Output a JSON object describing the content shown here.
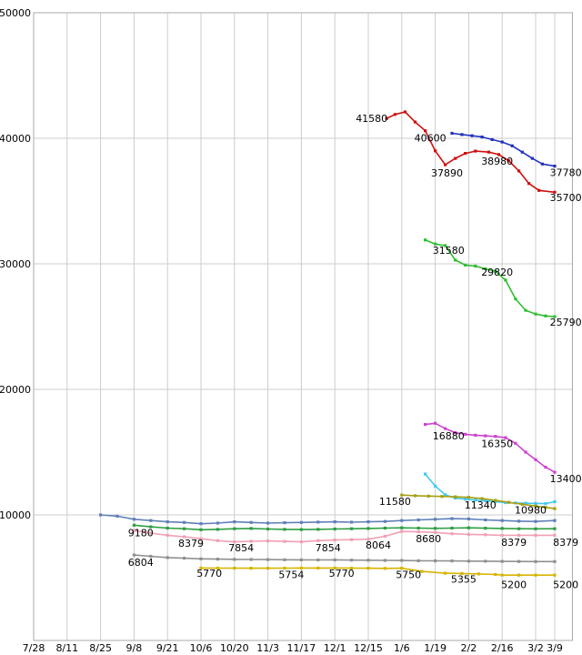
{
  "meta": {
    "background": "#ffffff",
    "grid_color": "#cccccc",
    "axis_color": "#aaaaaa",
    "label_color": "#000000",
    "font_size": 11
  },
  "chart_data": {
    "type": "line",
    "title": "",
    "xlabel": "",
    "ylabel": "",
    "ylim": [
      0,
      50000
    ],
    "xlim": [
      0,
      16.1
    ],
    "grid": true,
    "legend": "none",
    "y_ticks": [
      10000,
      20000,
      30000,
      40000,
      50000
    ],
    "x_tick_labels": [
      "7/28",
      "8/11",
      "8/25",
      "9/8",
      "9/21",
      "10/6",
      "10/20",
      "11/3",
      "11/17",
      "12/1",
      "12/15",
      "1/6",
      "1/19",
      "2/2",
      "2/16",
      "3/2",
      "3/9"
    ],
    "x_tick_positions": [
      0,
      1,
      2,
      3,
      4,
      5,
      6,
      7,
      8,
      9,
      10,
      11,
      12,
      13,
      14,
      15,
      15.57
    ],
    "series": [
      {
        "name": "red",
        "color": "#cc1111",
        "points": [
          [
            10.55,
            41580
          ],
          [
            10.8,
            41900
          ],
          [
            11.1,
            42100
          ],
          [
            11.4,
            41300
          ],
          [
            11.7,
            40600
          ],
          [
            12.0,
            39000
          ],
          [
            12.3,
            37890
          ],
          [
            12.6,
            38400
          ],
          [
            12.9,
            38800
          ],
          [
            13.2,
            38980
          ],
          [
            13.6,
            38900
          ],
          [
            13.9,
            38700
          ],
          [
            14.2,
            38200
          ],
          [
            14.5,
            37400
          ],
          [
            14.8,
            36400
          ],
          [
            15.1,
            35850
          ],
          [
            15.57,
            35700
          ]
        ]
      },
      {
        "name": "navy",
        "color": "#2233bb",
        "points": [
          [
            12.5,
            40400
          ],
          [
            12.8,
            40300
          ],
          [
            13.1,
            40200
          ],
          [
            13.4,
            40100
          ],
          [
            13.7,
            39900
          ],
          [
            14.0,
            39700
          ],
          [
            14.3,
            39400
          ],
          [
            14.6,
            38900
          ],
          [
            14.9,
            38400
          ],
          [
            15.2,
            37950
          ],
          [
            15.57,
            37780
          ]
        ]
      },
      {
        "name": "green",
        "color": "#33bb33",
        "points": [
          [
            11.7,
            31900
          ],
          [
            12.0,
            31580
          ],
          [
            12.3,
            31450
          ],
          [
            12.6,
            30300
          ],
          [
            12.9,
            29900
          ],
          [
            13.2,
            29820
          ],
          [
            13.5,
            29600
          ],
          [
            13.8,
            29400
          ],
          [
            14.1,
            28700
          ],
          [
            14.4,
            27200
          ],
          [
            14.7,
            26300
          ],
          [
            15.0,
            26000
          ],
          [
            15.3,
            25850
          ],
          [
            15.57,
            25790
          ]
        ]
      },
      {
        "name": "magenta",
        "color": "#cc44cc",
        "points": [
          [
            11.7,
            17200
          ],
          [
            12.0,
            17300
          ],
          [
            12.3,
            16880
          ],
          [
            12.6,
            16550
          ],
          [
            12.9,
            16420
          ],
          [
            13.2,
            16350
          ],
          [
            13.5,
            16300
          ],
          [
            13.8,
            16250
          ],
          [
            14.1,
            16150
          ],
          [
            14.4,
            15700
          ],
          [
            14.7,
            15000
          ],
          [
            15.0,
            14400
          ],
          [
            15.3,
            13800
          ],
          [
            15.57,
            13400
          ]
        ]
      },
      {
        "name": "cyan",
        "color": "#44c8ee",
        "points": [
          [
            11.7,
            13250
          ],
          [
            12.0,
            12300
          ],
          [
            12.3,
            11600
          ],
          [
            12.6,
            11340
          ],
          [
            12.9,
            11250
          ],
          [
            13.2,
            11180
          ],
          [
            13.5,
            11120
          ],
          [
            13.8,
            11060
          ],
          [
            14.1,
            10980
          ],
          [
            14.4,
            10950
          ],
          [
            14.7,
            10930
          ],
          [
            15.0,
            10910
          ],
          [
            15.3,
            10900
          ],
          [
            15.57,
            11050
          ]
        ]
      },
      {
        "name": "olive",
        "color": "#a6a014",
        "points": [
          [
            11.0,
            11580
          ],
          [
            11.4,
            11530
          ],
          [
            11.8,
            11500
          ],
          [
            12.2,
            11470
          ],
          [
            12.6,
            11440
          ],
          [
            13.0,
            11400
          ],
          [
            13.4,
            11300
          ],
          [
            13.8,
            11150
          ],
          [
            14.2,
            11000
          ],
          [
            14.6,
            10850
          ],
          [
            15.0,
            10700
          ],
          [
            15.3,
            10600
          ],
          [
            15.57,
            10500
          ]
        ]
      },
      {
        "name": "steel-blue",
        "color": "#6080b8",
        "points": [
          [
            2.0,
            10000
          ],
          [
            2.5,
            9900
          ],
          [
            3.0,
            9650
          ],
          [
            3.5,
            9550
          ],
          [
            4.0,
            9450
          ],
          [
            4.5,
            9400
          ],
          [
            5.0,
            9300
          ],
          [
            5.5,
            9350
          ],
          [
            6.0,
            9450
          ],
          [
            6.5,
            9400
          ],
          [
            7.0,
            9350
          ],
          [
            7.5,
            9380
          ],
          [
            8.0,
            9400
          ],
          [
            8.5,
            9430
          ],
          [
            9.0,
            9450
          ],
          [
            9.5,
            9420
          ],
          [
            10.0,
            9450
          ],
          [
            10.5,
            9480
          ],
          [
            11.0,
            9550
          ],
          [
            11.5,
            9600
          ],
          [
            12.0,
            9650
          ],
          [
            12.5,
            9700
          ],
          [
            13.0,
            9680
          ],
          [
            13.5,
            9600
          ],
          [
            14.0,
            9550
          ],
          [
            14.5,
            9500
          ],
          [
            15.0,
            9480
          ],
          [
            15.57,
            9550
          ]
        ]
      },
      {
        "name": "dark-green",
        "color": "#2f9e44",
        "points": [
          [
            3.0,
            9180
          ],
          [
            3.5,
            9050
          ],
          [
            4.0,
            8950
          ],
          [
            4.5,
            8900
          ],
          [
            5.0,
            8820
          ],
          [
            5.5,
            8850
          ],
          [
            6.0,
            8900
          ],
          [
            6.5,
            8920
          ],
          [
            7.0,
            8880
          ],
          [
            7.5,
            8850
          ],
          [
            8.0,
            8830
          ],
          [
            8.5,
            8850
          ],
          [
            9.0,
            8880
          ],
          [
            9.5,
            8900
          ],
          [
            10.0,
            8920
          ],
          [
            10.5,
            8950
          ],
          [
            11.0,
            8970
          ],
          [
            11.5,
            8950
          ],
          [
            12.0,
            8930
          ],
          [
            12.5,
            8950
          ],
          [
            13.0,
            8970
          ],
          [
            13.5,
            8940
          ],
          [
            14.0,
            8920
          ],
          [
            14.5,
            8900
          ],
          [
            15.0,
            8890
          ],
          [
            15.57,
            8900
          ]
        ]
      },
      {
        "name": "pink",
        "color": "#f0a0b4",
        "points": [
          [
            3.0,
            8750
          ],
          [
            3.5,
            8550
          ],
          [
            4.0,
            8379
          ],
          [
            4.5,
            8250
          ],
          [
            5.0,
            8100
          ],
          [
            5.5,
            7950
          ],
          [
            6.0,
            7854
          ],
          [
            6.5,
            7900
          ],
          [
            7.0,
            7930
          ],
          [
            7.5,
            7890
          ],
          [
            8.0,
            7854
          ],
          [
            8.5,
            7950
          ],
          [
            9.0,
            8000
          ],
          [
            9.5,
            8030
          ],
          [
            10.0,
            8064
          ],
          [
            10.5,
            8300
          ],
          [
            11.0,
            8680
          ],
          [
            11.5,
            8650
          ],
          [
            12.0,
            8600
          ],
          [
            12.5,
            8500
          ],
          [
            13.0,
            8450
          ],
          [
            13.5,
            8420
          ],
          [
            14.0,
            8379
          ],
          [
            14.5,
            8379
          ],
          [
            15.0,
            8379
          ],
          [
            15.57,
            8379
          ]
        ]
      },
      {
        "name": "gray",
        "color": "#909090",
        "points": [
          [
            3.0,
            6804
          ],
          [
            3.5,
            6700
          ],
          [
            4.0,
            6600
          ],
          [
            4.5,
            6550
          ],
          [
            5.0,
            6500
          ],
          [
            5.5,
            6480
          ],
          [
            6.0,
            6460
          ],
          [
            6.5,
            6450
          ],
          [
            7.0,
            6440
          ],
          [
            7.5,
            6430
          ],
          [
            8.0,
            6420
          ],
          [
            8.5,
            6410
          ],
          [
            9.0,
            6420
          ],
          [
            9.5,
            6400
          ],
          [
            10.0,
            6390
          ],
          [
            10.5,
            6380
          ],
          [
            11.0,
            6370
          ],
          [
            11.5,
            6350
          ],
          [
            12.0,
            6340
          ],
          [
            12.5,
            6330
          ],
          [
            13.0,
            6320
          ],
          [
            13.5,
            6310
          ],
          [
            14.0,
            6300
          ],
          [
            14.5,
            6290
          ],
          [
            15.0,
            6280
          ],
          [
            15.57,
            6280
          ]
        ]
      },
      {
        "name": "gold",
        "color": "#d6b400",
        "points": [
          [
            5.0,
            5770
          ],
          [
            5.5,
            5763
          ],
          [
            6.0,
            5758
          ],
          [
            6.5,
            5756
          ],
          [
            7.0,
            5754
          ],
          [
            7.5,
            5762
          ],
          [
            8.0,
            5766
          ],
          [
            8.5,
            5768
          ],
          [
            9.0,
            5770
          ],
          [
            9.5,
            5758
          ],
          [
            10.0,
            5750
          ],
          [
            10.5,
            5740
          ],
          [
            11.0,
            5750
          ],
          [
            11.6,
            5500
          ],
          [
            12.3,
            5355
          ],
          [
            12.8,
            5330
          ],
          [
            13.3,
            5300
          ],
          [
            13.8,
            5250
          ],
          [
            14.0,
            5200
          ],
          [
            14.5,
            5200
          ],
          [
            15.0,
            5200
          ],
          [
            15.57,
            5200
          ]
        ]
      }
    ],
    "annotations": [
      {
        "text": "41580",
        "x": 10.1,
        "v": 41580
      },
      {
        "text": "40600",
        "x": 11.85,
        "v": 40050
      },
      {
        "text": "37890",
        "x": 12.35,
        "v": 37250
      },
      {
        "text": "38980",
        "x": 13.85,
        "v": 38200
      },
      {
        "text": "37780",
        "x": 15.9,
        "v": 37300
      },
      {
        "text": "35700",
        "x": 15.9,
        "v": 35300
      },
      {
        "text": "31580",
        "x": 12.4,
        "v": 31100
      },
      {
        "text": "29820",
        "x": 13.85,
        "v": 29350
      },
      {
        "text": "25790",
        "x": 15.9,
        "v": 25350
      },
      {
        "text": "16880",
        "x": 12.4,
        "v": 16300
      },
      {
        "text": "16350",
        "x": 13.85,
        "v": 15700
      },
      {
        "text": "13400",
        "x": 15.9,
        "v": 12900
      },
      {
        "text": "11580",
        "x": 10.8,
        "v": 11100
      },
      {
        "text": "11340",
        "x": 13.35,
        "v": 10800
      },
      {
        "text": "10980",
        "x": 14.85,
        "v": 10400
      },
      {
        "text": "9180",
        "x": 3.2,
        "v": 8600
      },
      {
        "text": "8379",
        "x": 4.7,
        "v": 7750
      },
      {
        "text": "6804",
        "x": 3.2,
        "v": 6250
      },
      {
        "text": "7854",
        "x": 6.2,
        "v": 7400
      },
      {
        "text": "5770",
        "x": 5.25,
        "v": 5380
      },
      {
        "text": "5754",
        "x": 7.7,
        "v": 5240
      },
      {
        "text": "7854",
        "x": 8.8,
        "v": 7400
      },
      {
        "text": "5770",
        "x": 9.2,
        "v": 5380
      },
      {
        "text": "8064",
        "x": 10.3,
        "v": 7620
      },
      {
        "text": "5750",
        "x": 11.2,
        "v": 5240
      },
      {
        "text": "8680",
        "x": 11.8,
        "v": 8120
      },
      {
        "text": "5355",
        "x": 12.85,
        "v": 4880
      },
      {
        "text": "8379",
        "x": 14.35,
        "v": 7830
      },
      {
        "text": "5200",
        "x": 14.35,
        "v": 4450
      },
      {
        "text": "8379",
        "x": 15.9,
        "v": 7830
      },
      {
        "text": "5200",
        "x": 15.9,
        "v": 4450
      }
    ]
  }
}
